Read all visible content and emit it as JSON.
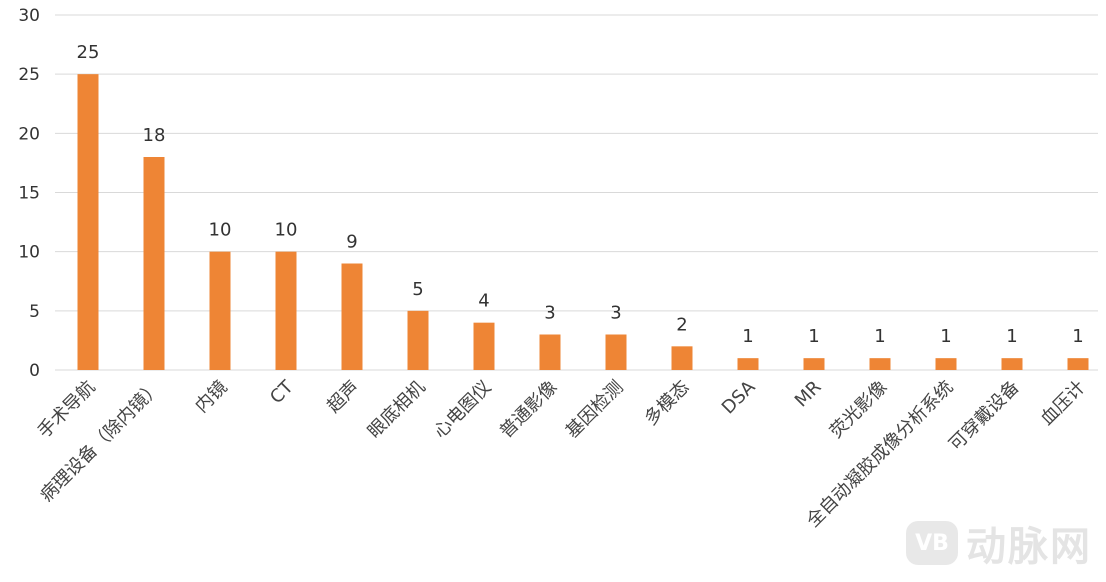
{
  "chart_data": {
    "type": "bar",
    "categories": [
      "手术导航",
      "病理设备（除内镜）",
      "内镜",
      "CT",
      "超声",
      "眼底相机",
      "心电图仪",
      "普通影像",
      "基因检测",
      "多模态",
      "DSA",
      "MR",
      "荧光影像",
      "全自动凝胶成像分析系统",
      "可穿戴设备",
      "血压计"
    ],
    "values": [
      25,
      18,
      10,
      10,
      9,
      5,
      4,
      3,
      3,
      2,
      1,
      1,
      1,
      1,
      1,
      1
    ],
    "title": "",
    "xlabel": "",
    "ylabel": "",
    "ylim": [
      0,
      30
    ],
    "yticks": [
      "0",
      "5",
      "10",
      "15",
      "20",
      "25",
      "30"
    ],
    "grid": true,
    "bar_color": "#ee8535",
    "data_labels": true
  },
  "watermark": {
    "logo_text": "VB",
    "text": "动脉网"
  }
}
